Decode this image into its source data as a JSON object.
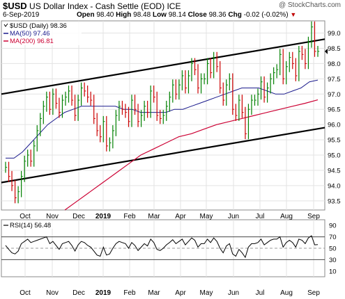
{
  "header": {
    "symbol": "$USD",
    "name": "US Dollar Index - Cash Settle (EOD)",
    "exchange": "ICE",
    "date": "6-Sep-2019",
    "watermark": "@ StockCharts.com",
    "open_label": "Open",
    "open": "98.40",
    "high_label": "High",
    "high": "98.48",
    "low_label": "Low",
    "low": "98.14",
    "close_label": "Close",
    "close": "98.36",
    "chg_label": "Chg",
    "chg": "-0.02 (-0.02%)"
  },
  "legend": {
    "price": "$USD (Daily) 98.36",
    "ma50": "MA(50) 97.46",
    "ma200": "MA(200) 96.81",
    "rsi": "RSI(14) 56.48"
  },
  "colors": {
    "price": "#000000",
    "ma50": "#1a1a8c",
    "ma200": "#cc0033",
    "down_bar": "#cc0000",
    "up_bar": "#008000",
    "channel": "#000000"
  },
  "chart_data": [
    {
      "type": "line",
      "title": "$USD (Daily) 98.36",
      "x_labels": [
        "Oct",
        "Nov",
        "Dec",
        "2019",
        "Feb",
        "Mar",
        "Apr",
        "May",
        "Jun",
        "Jul",
        "Aug",
        "Sep"
      ],
      "y_ticks": [
        "93.5",
        "94.0",
        "94.5",
        "95.0",
        "95.5",
        "96.0",
        "96.5",
        "97.0",
        "97.5",
        "98.0",
        "98.5",
        "99.0"
      ],
      "ylim": [
        93.2,
        99.4
      ],
      "y_scale": "linear",
      "grid": true,
      "legend": "top-left",
      "series": [
        {
          "name": "$USD (Daily) 98.36",
          "style": "hlc-bars",
          "values": [
            94.6,
            94.3,
            94.0,
            93.6,
            93.8,
            94.3,
            94.8,
            95.0,
            94.8,
            95.3,
            95.8,
            96.2,
            96.6,
            96.9,
            96.5,
            97.0,
            96.7,
            96.4,
            96.8,
            96.9,
            97.1,
            96.8,
            96.3,
            96.8,
            97.2,
            97.1,
            96.9,
            96.8,
            96.2,
            95.8,
            95.6,
            96.1,
            95.3,
            95.4,
            95.8,
            96.3,
            96.6,
            96.5,
            96.4,
            96.1,
            96.8,
            96.5,
            96.1,
            96.3,
            96.6,
            96.4,
            97.1,
            96.9,
            96.3,
            96.2,
            96.3,
            96.6,
            96.9,
            97.3,
            97.0,
            97.3,
            97.6,
            97.2,
            97.6,
            98.0,
            97.8,
            97.2,
            97.5,
            97.5,
            98.0,
            97.7,
            98.2,
            97.9,
            97.2,
            96.8,
            97.3,
            97.5,
            96.5,
            96.3,
            96.8,
            96.4,
            95.7,
            96.5,
            96.8,
            96.8,
            97.0,
            97.4,
            96.9,
            97.2,
            97.5,
            97.7,
            97.8,
            98.3,
            97.5,
            97.9,
            98.2,
            98.0,
            97.6,
            98.4,
            98.3,
            98.0,
            98.7,
            99.2,
            98.4,
            98.4
          ]
        },
        {
          "name": "MA(50) 97.46",
          "values": [
            94.9,
            94.9,
            95.1,
            95.4,
            95.7,
            96.0,
            96.2,
            96.4,
            96.5,
            96.6,
            96.6,
            96.6,
            96.6,
            96.6,
            96.5,
            96.5,
            96.4,
            96.4,
            96.4,
            96.4,
            96.5,
            96.5,
            96.6,
            96.7,
            96.8,
            96.9,
            97.0,
            97.1,
            97.2,
            97.2,
            97.2,
            97.1,
            97.0,
            97.0,
            97.1,
            97.2,
            97.4,
            97.46
          ]
        },
        {
          "name": "MA(200) 96.81",
          "values": [
            93.2,
            93.5,
            93.8,
            94.1,
            94.4,
            94.7,
            95.0,
            95.2,
            95.4,
            95.6,
            95.7,
            95.85,
            96.0,
            96.1,
            96.2,
            96.3,
            96.4,
            96.5,
            96.6,
            96.7,
            96.81
          ]
        }
      ],
      "channel": {
        "upper": [
          [
            0,
            97.0
          ],
          [
            1,
            98.8
          ]
        ],
        "lower": [
          [
            0,
            94.1
          ],
          [
            1,
            95.9
          ]
        ]
      }
    },
    {
      "type": "line",
      "title": "RSI(14) 56.48",
      "y_ticks": [
        "10",
        "30",
        "50",
        "70",
        "90"
      ],
      "ylim": [
        0,
        100
      ],
      "reference_lines": [
        30,
        50,
        70
      ],
      "series": [
        {
          "name": "RSI(14) 56.48",
          "values": [
            55,
            48,
            42,
            40,
            45,
            58,
            62,
            66,
            60,
            62,
            64,
            66,
            68,
            70,
            58,
            62,
            55,
            48,
            58,
            60,
            62,
            55,
            45,
            56,
            62,
            60,
            55,
            52,
            45,
            38,
            36,
            52,
            38,
            40,
            50,
            58,
            62,
            60,
            58,
            50,
            60,
            55,
            46,
            52,
            58,
            54,
            66,
            60,
            48,
            46,
            50,
            56,
            60,
            65,
            58,
            62,
            66,
            56,
            62,
            68,
            64,
            52,
            58,
            58,
            66,
            60,
            68,
            62,
            50,
            42,
            54,
            58,
            40,
            36,
            48,
            42,
            34,
            52,
            58,
            58,
            60,
            66,
            56,
            60,
            64,
            66,
            66,
            70,
            52,
            60,
            64,
            60,
            52,
            66,
            64,
            58,
            68,
            72,
            56,
            56.48
          ]
        }
      ]
    }
  ]
}
